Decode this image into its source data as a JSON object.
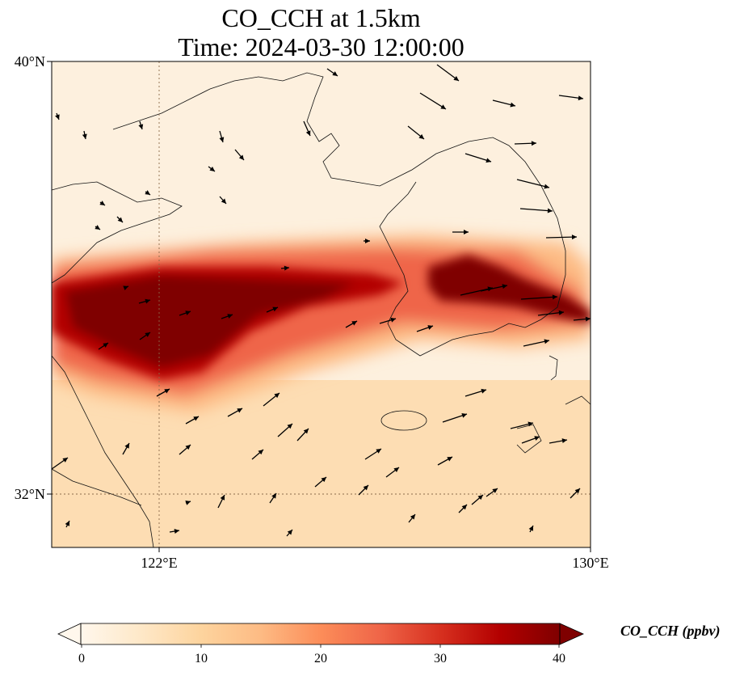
{
  "title": {
    "line1": "CO_CCH at 1.5km",
    "line2": "Time: 2024-03-30 12:00:00"
  },
  "axes": {
    "lat_labels": [
      "40°N",
      "32°N"
    ],
    "lon_labels": [
      "122°E",
      "130°E"
    ],
    "lat_range": [
      31,
      40
    ],
    "lon_range": [
      120,
      130
    ],
    "gridlines": "dotted at 122°E and 32°N"
  },
  "colorbar": {
    "label": "CO_CCH (ppbv)",
    "ticks": [
      "0",
      "10",
      "20",
      "30",
      "40"
    ],
    "range": [
      0,
      40
    ],
    "colormap": "OrRd",
    "extend": "both",
    "colors": [
      "#fff7ec",
      "#fee8c8",
      "#fdd49e",
      "#fdbb84",
      "#fc8d59",
      "#ef6548",
      "#d7301f",
      "#b30000",
      "#7f0000"
    ]
  },
  "field_description": "high CO plume band from west China coast across Yellow Sea to Korea",
  "wind_vectors": "shown as black arrows"
}
